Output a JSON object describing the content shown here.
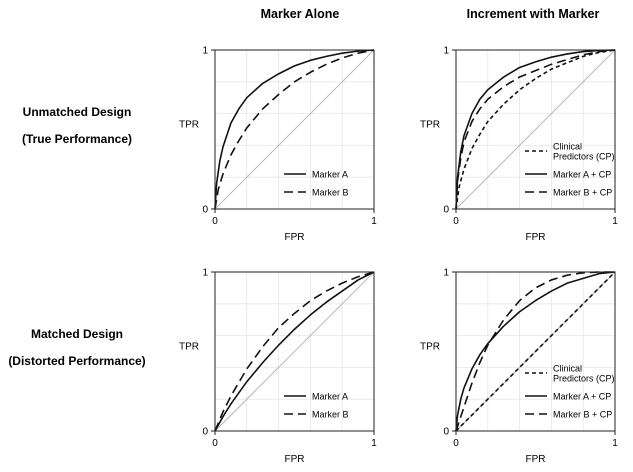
{
  "column_titles": [
    "Marker Alone",
    "Increment with Marker"
  ],
  "row_titles": [
    {
      "line1": "Unmatched Design",
      "line2": "(True Performance)"
    },
    {
      "line1": "Matched Design",
      "line2": "(Distorted Performance)"
    }
  ],
  "styles": {
    "solid": "",
    "long_dash": "9,5",
    "short_dash": "4,3"
  },
  "colors": {
    "curve": "#111111",
    "diagonal": "#b8b8b8",
    "grid": "#e6e6e6",
    "frame": "#222222"
  },
  "chart_data": [
    {
      "type": "line",
      "panel": "top-left",
      "xlabel": "FPR",
      "ylabel": "TPR",
      "xlim": [
        0,
        1
      ],
      "ylim": [
        0,
        1
      ],
      "xticks": [
        0,
        1
      ],
      "yticks": [
        0,
        1
      ],
      "grid": true,
      "diagonal": true,
      "legend": {
        "placement": "bottom-right"
      },
      "series": [
        {
          "name": "Marker A",
          "style": "solid",
          "x": [
            0,
            0.01,
            0.03,
            0.05,
            0.1,
            0.15,
            0.2,
            0.3,
            0.4,
            0.5,
            0.6,
            0.7,
            0.8,
            0.9,
            1
          ],
          "y": [
            0,
            0.16,
            0.3,
            0.39,
            0.54,
            0.63,
            0.7,
            0.79,
            0.85,
            0.9,
            0.935,
            0.96,
            0.98,
            0.993,
            1
          ]
        },
        {
          "name": "Marker B",
          "style": "long_dash",
          "x": [
            0,
            0.02,
            0.05,
            0.1,
            0.15,
            0.2,
            0.3,
            0.4,
            0.5,
            0.6,
            0.7,
            0.8,
            0.9,
            1
          ],
          "y": [
            0,
            0.12,
            0.22,
            0.34,
            0.43,
            0.51,
            0.63,
            0.72,
            0.8,
            0.86,
            0.91,
            0.95,
            0.98,
            1
          ]
        }
      ]
    },
    {
      "type": "line",
      "panel": "top-right",
      "xlabel": "FPR",
      "ylabel": "TPR",
      "xlim": [
        0,
        1
      ],
      "ylim": [
        0,
        1
      ],
      "xticks": [
        0,
        1
      ],
      "yticks": [
        0,
        1
      ],
      "grid": true,
      "diagonal": true,
      "legend": {
        "placement": "bottom-right"
      },
      "series": [
        {
          "name": "Clinical Predictors (CP)",
          "legend_lines": [
            "Clinical",
            "Predictors (CP)"
          ],
          "style": "short_dash",
          "x": [
            0,
            0.02,
            0.05,
            0.1,
            0.15,
            0.2,
            0.3,
            0.4,
            0.5,
            0.6,
            0.7,
            0.8,
            0.9,
            1
          ],
          "y": [
            0,
            0.14,
            0.25,
            0.38,
            0.47,
            0.55,
            0.66,
            0.75,
            0.82,
            0.88,
            0.92,
            0.96,
            0.985,
            1
          ]
        },
        {
          "name": "Marker A + CP",
          "style": "solid",
          "x": [
            0,
            0.01,
            0.03,
            0.05,
            0.1,
            0.15,
            0.2,
            0.3,
            0.4,
            0.5,
            0.6,
            0.7,
            0.8,
            0.9,
            1
          ],
          "y": [
            0,
            0.2,
            0.36,
            0.46,
            0.6,
            0.69,
            0.75,
            0.83,
            0.89,
            0.925,
            0.955,
            0.975,
            0.99,
            0.997,
            1
          ]
        },
        {
          "name": "Marker B + CP",
          "style": "long_dash",
          "x": [
            0,
            0.01,
            0.03,
            0.05,
            0.1,
            0.15,
            0.2,
            0.3,
            0.4,
            0.5,
            0.6,
            0.7,
            0.8,
            0.9,
            1
          ],
          "y": [
            0,
            0.18,
            0.32,
            0.42,
            0.55,
            0.63,
            0.69,
            0.77,
            0.83,
            0.87,
            0.91,
            0.94,
            0.97,
            0.99,
            1
          ]
        }
      ]
    },
    {
      "type": "line",
      "panel": "bottom-left",
      "xlabel": "FPR",
      "ylabel": "TPR",
      "xlim": [
        0,
        1
      ],
      "ylim": [
        0,
        1
      ],
      "xticks": [
        0,
        1
      ],
      "yticks": [
        0,
        1
      ],
      "grid": true,
      "diagonal": true,
      "legend": {
        "placement": "bottom-right"
      },
      "series": [
        {
          "name": "Marker A",
          "style": "solid",
          "x": [
            0,
            0.05,
            0.1,
            0.2,
            0.3,
            0.4,
            0.5,
            0.6,
            0.7,
            0.8,
            0.9,
            1
          ],
          "y": [
            0,
            0.09,
            0.17,
            0.31,
            0.43,
            0.54,
            0.64,
            0.73,
            0.81,
            0.88,
            0.95,
            1
          ]
        },
        {
          "name": "Marker B",
          "style": "long_dash",
          "x": [
            0,
            0.05,
            0.1,
            0.2,
            0.3,
            0.4,
            0.5,
            0.6,
            0.7,
            0.8,
            0.9,
            1
          ],
          "y": [
            0,
            0.12,
            0.22,
            0.39,
            0.53,
            0.65,
            0.74,
            0.82,
            0.88,
            0.93,
            0.97,
            1
          ]
        }
      ]
    },
    {
      "type": "line",
      "panel": "bottom-right",
      "xlabel": "FPR",
      "ylabel": "TPR",
      "xlim": [
        0,
        1
      ],
      "ylim": [
        0,
        1
      ],
      "xticks": [
        0,
        1
      ],
      "yticks": [
        0,
        1
      ],
      "grid": true,
      "diagonal": true,
      "legend": {
        "placement": "bottom-right"
      },
      "series": [
        {
          "name": "Clinical Predictors (CP)",
          "legend_lines": [
            "Clinical",
            "Predictors (CP)"
          ],
          "style": "short_dash",
          "x": [
            0,
            0.5,
            1
          ],
          "y": [
            0,
            0.5,
            1
          ]
        },
        {
          "name": "Marker A + CP",
          "style": "solid",
          "x": [
            0,
            0.01,
            0.03,
            0.05,
            0.1,
            0.15,
            0.2,
            0.3,
            0.4,
            0.5,
            0.6,
            0.7,
            0.8,
            0.9,
            1
          ],
          "y": [
            0,
            0.1,
            0.2,
            0.27,
            0.39,
            0.48,
            0.55,
            0.66,
            0.75,
            0.82,
            0.88,
            0.93,
            0.96,
            0.99,
            1
          ]
        },
        {
          "name": "Marker B + CP",
          "style": "long_dash",
          "x": [
            0,
            0.02,
            0.05,
            0.1,
            0.15,
            0.2,
            0.3,
            0.4,
            0.5,
            0.6,
            0.7,
            0.8,
            0.9,
            1
          ],
          "y": [
            0,
            0.06,
            0.15,
            0.3,
            0.43,
            0.54,
            0.7,
            0.82,
            0.9,
            0.95,
            0.98,
            0.995,
            1,
            1
          ]
        }
      ]
    }
  ]
}
